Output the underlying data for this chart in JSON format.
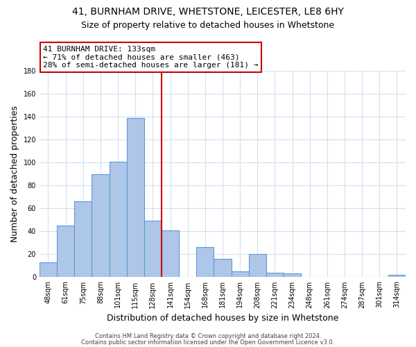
{
  "title_line1": "41, BURNHAM DRIVE, WHETSTONE, LEICESTER, LE8 6HY",
  "title_line2": "Size of property relative to detached houses in Whetstone",
  "xlabel": "Distribution of detached houses by size in Whetstone",
  "ylabel": "Number of detached properties",
  "bar_labels": [
    "48sqm",
    "61sqm",
    "75sqm",
    "88sqm",
    "101sqm",
    "115sqm",
    "128sqm",
    "141sqm",
    "154sqm",
    "168sqm",
    "181sqm",
    "194sqm",
    "208sqm",
    "221sqm",
    "234sqm",
    "248sqm",
    "261sqm",
    "274sqm",
    "287sqm",
    "301sqm",
    "314sqm"
  ],
  "bar_values": [
    13,
    45,
    66,
    90,
    101,
    139,
    49,
    41,
    0,
    26,
    16,
    5,
    20,
    4,
    3,
    0,
    0,
    0,
    0,
    0,
    2
  ],
  "bar_color": "#aec6e8",
  "bar_edgecolor": "#5b9bd5",
  "vline_x": 6.5,
  "vline_color": "#cc0000",
  "annotation_line1": "41 BURNHAM DRIVE: 133sqm",
  "annotation_line2": "← 71% of detached houses are smaller (463)",
  "annotation_line3": "28% of semi-detached houses are larger (181) →",
  "annotation_box_edgecolor": "#cc0000",
  "annotation_box_facecolor": "#ffffff",
  "ylim": [
    0,
    180
  ],
  "yticks": [
    0,
    20,
    40,
    60,
    80,
    100,
    120,
    140,
    160,
    180
  ],
  "footer_line1": "Contains HM Land Registry data © Crown copyright and database right 2024.",
  "footer_line2": "Contains public sector information licensed under the Open Government Licence v3.0.",
  "background_color": "#ffffff",
  "grid_color": "#d0e0f0",
  "title_fontsize": 10,
  "subtitle_fontsize": 9,
  "axis_label_fontsize": 9,
  "tick_fontsize": 7,
  "annotation_fontsize": 8,
  "footer_fontsize": 6
}
